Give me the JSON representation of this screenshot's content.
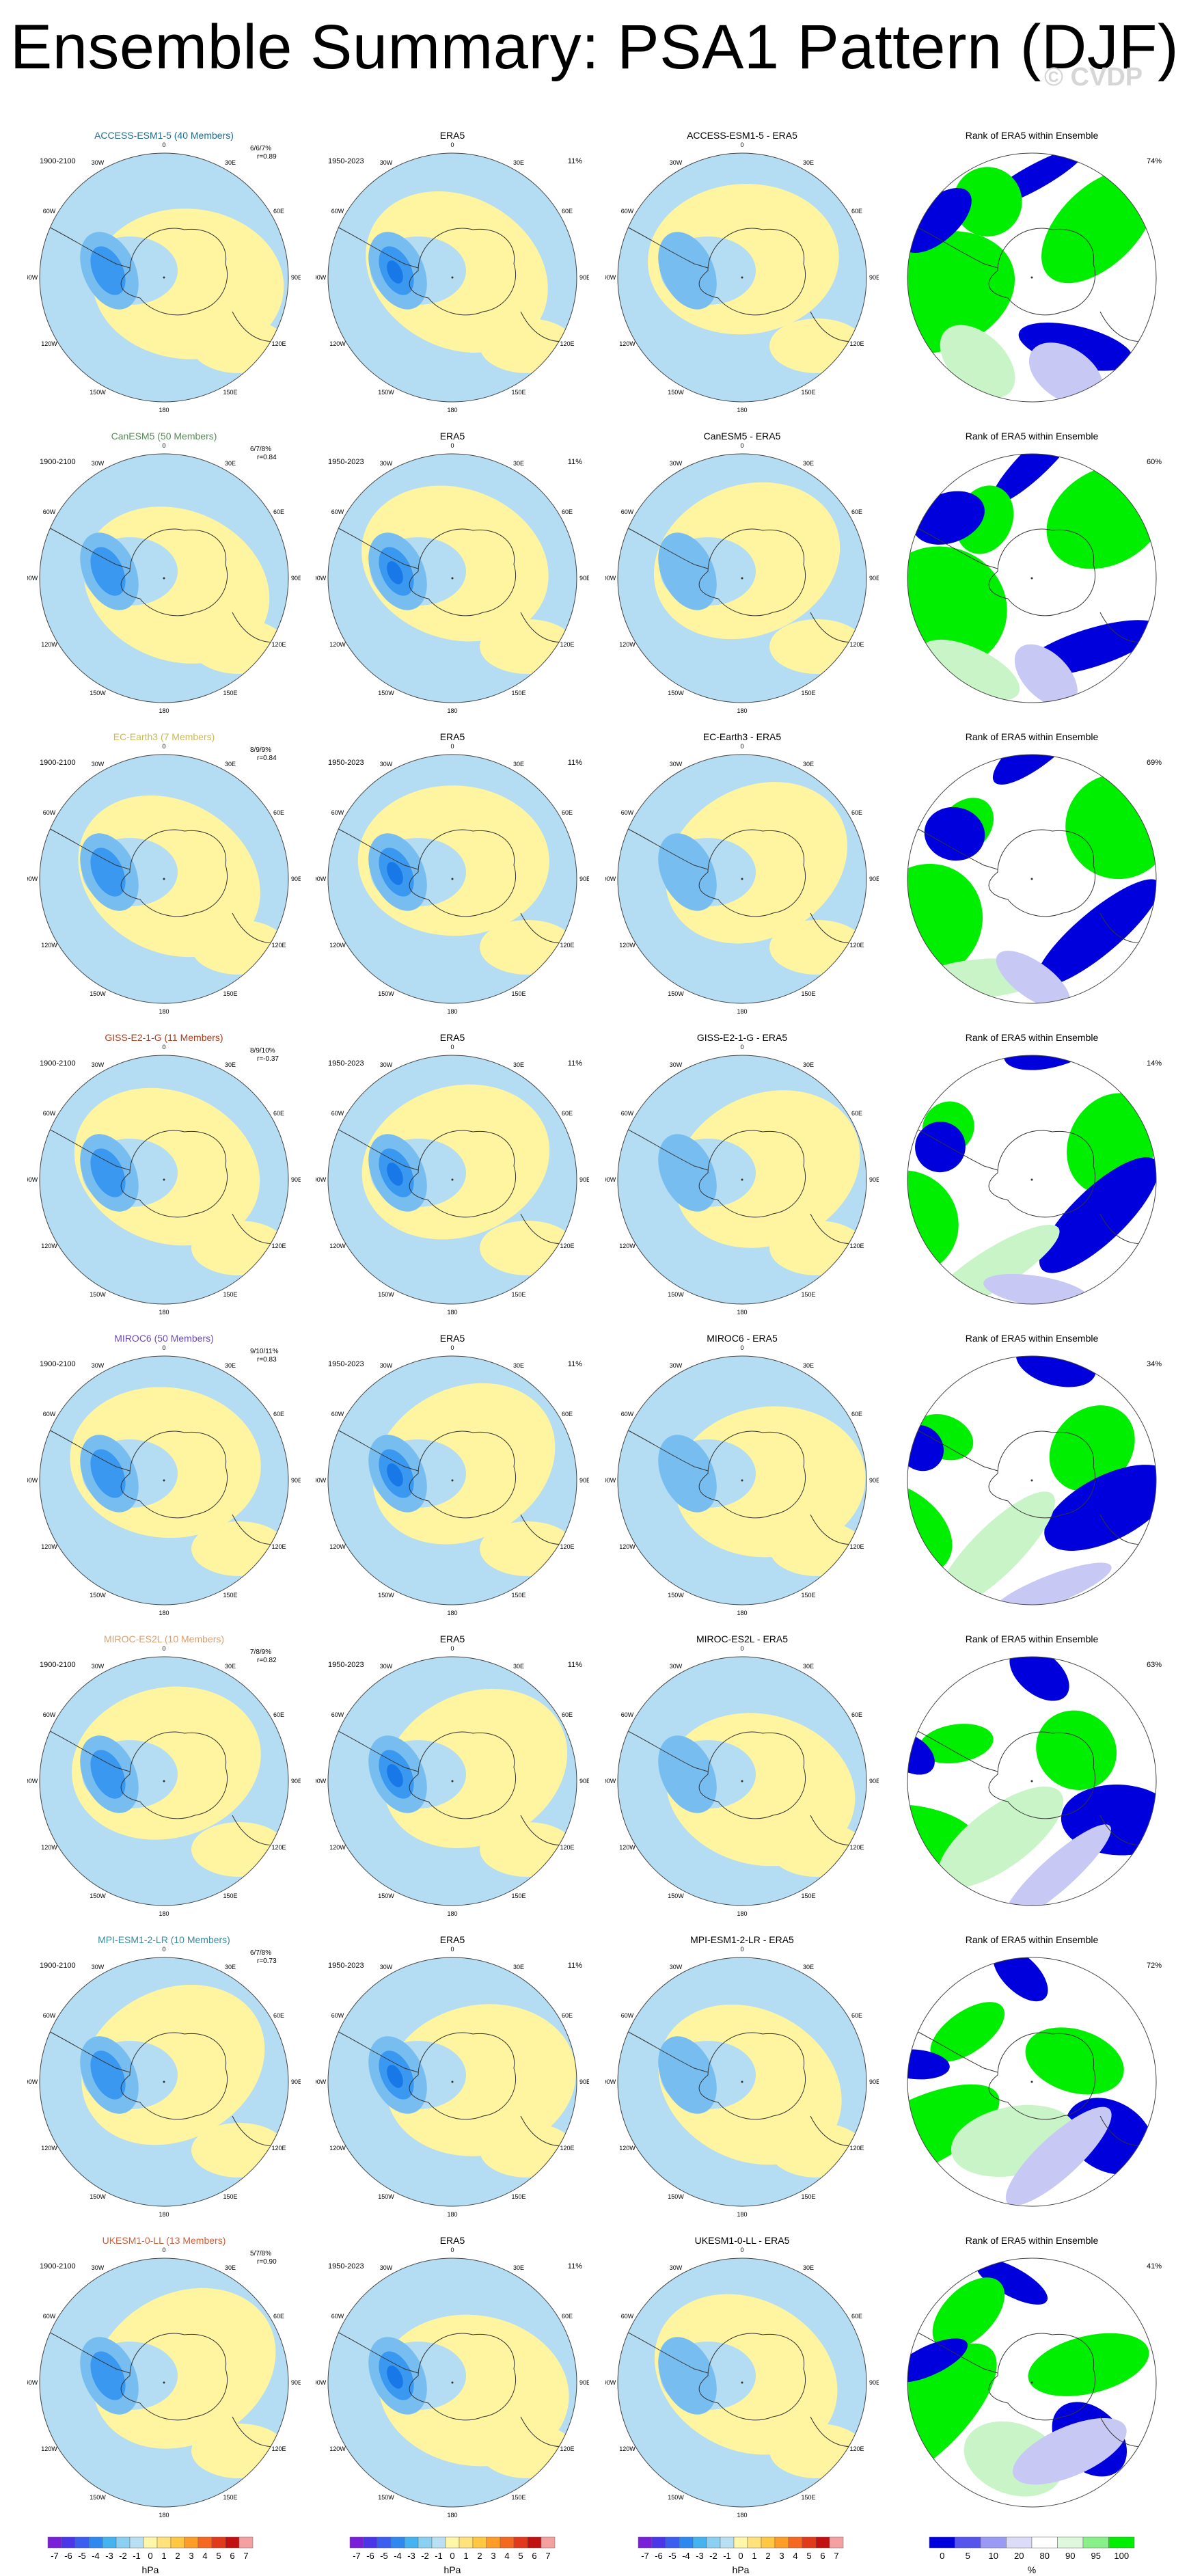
{
  "title": "Ensemble Summary: PSA1 Pattern (DJF)",
  "watermark": "© CVDP",
  "obs_title": "ERA5",
  "obs_period": "1950-2023",
  "obs_pct": "11%",
  "model_period": "1900-2100",
  "rank_title": "Rank of ERA5 within Ensemble",
  "longitude_labels": [
    "0",
    "30E",
    "60E",
    "90E",
    "120E",
    "150E",
    "180",
    "150W",
    "120W",
    "90W",
    "60W",
    "30W"
  ],
  "rows": [
    {
      "model_title": "ACCESS-ESM1-5 (40 Members)",
      "title_color": "#1f6b8e",
      "pcts": "6/6/7%",
      "r": "r=0.89",
      "diff_title": "ACCESS-ESM1-5 - ERA5",
      "rank_pct": "74%"
    },
    {
      "model_title": "CanESM5 (50 Members)",
      "title_color": "#5a8a5a",
      "pcts": "6/7/8%",
      "r": "r=0.84",
      "diff_title": "CanESM5 - ERA5",
      "rank_pct": "60%"
    },
    {
      "model_title": "EC-Earth3 (7 Members)",
      "title_color": "#c8b85a",
      "pcts": "8/9/9%",
      "r": "r=0.84",
      "diff_title": "EC-Earth3 - ERA5",
      "rank_pct": "69%"
    },
    {
      "model_title": "GISS-E2-1-G (11 Members)",
      "title_color": "#a83c1c",
      "pcts": "8/9/10%",
      "r": "r=-0.37",
      "diff_title": "GISS-E2-1-G - ERA5",
      "rank_pct": "14%"
    },
    {
      "model_title": "MIROC6 (50 Members)",
      "title_color": "#6a4ab8",
      "pcts": "9/10/11%",
      "r": "r=0.83",
      "diff_title": "MIROC6 - ERA5",
      "rank_pct": "34%"
    },
    {
      "model_title": "MIROC-ES2L (10 Members)",
      "title_color": "#d8a070",
      "pcts": "7/8/9%",
      "r": "r=0.82",
      "diff_title": "MIROC-ES2L - ERA5",
      "rank_pct": "63%"
    },
    {
      "model_title": "MPI-ESM1-2-LR (10 Members)",
      "title_color": "#3a8aa0",
      "pcts": "6/7/8%",
      "r": "r=0.73",
      "diff_title": "MPI-ESM1-2-LR - ERA5",
      "rank_pct": "72%"
    },
    {
      "model_title": "UKESM1-0-LL (13 Members)",
      "title_color": "#d0603a",
      "pcts": "5/7/8%",
      "r": "r=0.90",
      "diff_title": "UKESM1-0-LL - ERA5",
      "rank_pct": "41%"
    }
  ],
  "colorbar_hpa": {
    "labels": [
      "-7",
      "-6",
      "-5",
      "-4",
      "-3",
      "-2",
      "-1",
      "0",
      "1",
      "2",
      "3",
      "4",
      "5",
      "6",
      "7"
    ],
    "colors": [
      "#7a1fd8",
      "#4a36e8",
      "#3a5ef0",
      "#2f88f0",
      "#44b4f0",
      "#8ad0f0",
      "#b8e0f2",
      "#fff6a8",
      "#ffe27a",
      "#ffc840",
      "#ff9c28",
      "#f46820",
      "#e03a1a",
      "#c01010",
      "#f4a0a0"
    ],
    "unit": "hPa"
  },
  "colorbar_rank": {
    "labels": [
      "0",
      "5",
      "10",
      "20",
      "80",
      "90",
      "95",
      "100"
    ],
    "colors": [
      "#0000dd",
      "#5555ee",
      "#9a9af4",
      "#dcdcf8",
      "#ffffff",
      "#ddf8dd",
      "#88f088",
      "#00ee00"
    ],
    "unit": "%"
  },
  "legend_colors": {
    "model_yellow": "#fff4a0",
    "model_blue": "#b4dcf2",
    "mid_blue": "#78bdf0",
    "deep_blue": "#3a98f0",
    "core_blue": "#1878e8",
    "rank_blue": "#0000dd",
    "rank_green": "#00ee00",
    "rank_lightblue": "#c8c8f4",
    "rank_lightgreen": "#c8f4c8"
  }
}
